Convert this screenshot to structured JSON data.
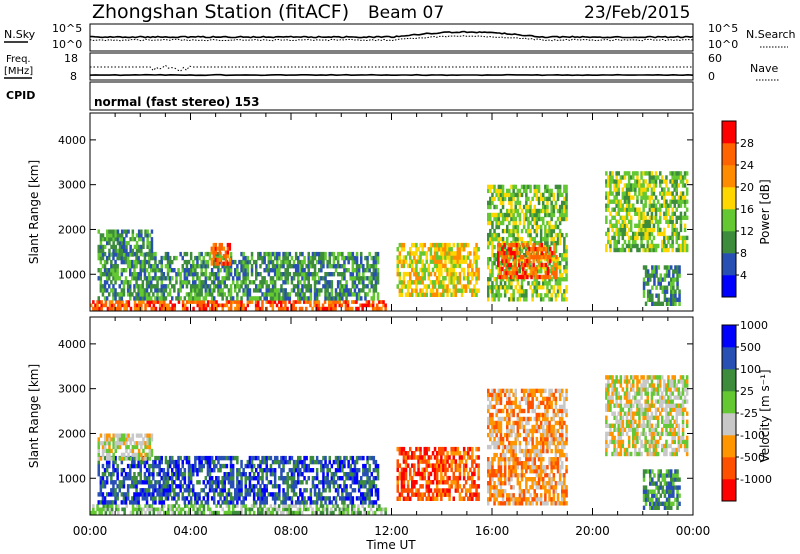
{
  "header": {
    "station_title": "Zhongshan Station (fitACF)",
    "beam": "Beam 07",
    "date": "23/Feb/2015"
  },
  "strip1": {
    "left_label": "N.Sky",
    "right_label": "N.Search",
    "left_ticks": [
      "10^5",
      "10^0"
    ],
    "right_ticks": [
      "10^5",
      "10^0"
    ]
  },
  "strip2": {
    "left_label_1": "Freq.",
    "left_label_2": "[MHz]",
    "right_label": "Nave",
    "left_ticks": [
      "18",
      "8"
    ],
    "right_ticks": [
      "60",
      "0"
    ]
  },
  "strip3": {
    "left_label": "CPID",
    "text": "normal (fast stereo) 153"
  },
  "colors": {
    "power": [
      "#0000ff",
      "#2850b4",
      "#3c8c3c",
      "#64c832",
      "#ffd700",
      "#ff8c00",
      "#ff6400",
      "#ff0000"
    ],
    "velocity": [
      "#ff0000",
      "#ff5000",
      "#ff9600",
      "#c8c8c8",
      "#64c832",
      "#3c8c3c",
      "#2850b4",
      "#0000ff"
    ]
  },
  "chart_data": [
    {
      "type": "heatmap",
      "title": "Power",
      "xlabel": "",
      "ylabel": "Slant Range [km]",
      "xlim": [
        "00:00",
        "00:00"
      ],
      "ylim": [
        180,
        4600
      ],
      "yticks": [
        "1000",
        "2000",
        "3000",
        "4000"
      ],
      "colorbar": {
        "label": "Power [dB]",
        "ticks": [
          "4",
          "8",
          "12",
          "16",
          "20",
          "24",
          "28"
        ],
        "range": [
          0,
          32
        ]
      },
      "blobs": [
        {
          "t0": 0.0,
          "t1": 11.8,
          "r0": 200,
          "r1": 420,
          "level": 6
        },
        {
          "t0": 0.3,
          "t1": 11.5,
          "r0": 420,
          "r1": 1500,
          "level": 2
        },
        {
          "t0": 0.3,
          "t1": 2.5,
          "r0": 1400,
          "r1": 2000,
          "level": 2
        },
        {
          "t0": 4.8,
          "t1": 5.6,
          "r0": 1200,
          "r1": 1700,
          "level": 6
        },
        {
          "t0": 12.2,
          "t1": 15.5,
          "r0": 500,
          "r1": 1700,
          "level": 4
        },
        {
          "t0": 15.8,
          "t1": 19.0,
          "r0": 400,
          "r1": 3000,
          "level": 3
        },
        {
          "t0": 16.2,
          "t1": 18.6,
          "r0": 900,
          "r1": 1700,
          "level": 6
        },
        {
          "t0": 20.5,
          "t1": 23.8,
          "r0": 1500,
          "r1": 3300,
          "level": 3
        },
        {
          "t0": 22.0,
          "t1": 23.5,
          "r0": 300,
          "r1": 1200,
          "level": 2
        }
      ]
    },
    {
      "type": "heatmap",
      "title": "Velocity",
      "xlabel": "Time UT",
      "ylabel": "Slant Range [km]",
      "xlim": [
        "00:00",
        "00:00"
      ],
      "ylim": [
        180,
        4600
      ],
      "xticks": [
        "00:00",
        "04:00",
        "08:00",
        "12:00",
        "16:00",
        "20:00",
        "00:00"
      ],
      "yticks": [
        "1000",
        "2000",
        "3000",
        "4000"
      ],
      "colorbar": {
        "label": "Velocity [m s⁻¹]",
        "ticks": [
          "-1000",
          "-500",
          "-100",
          "-25",
          "25",
          "100",
          "500",
          "1000"
        ],
        "range": [
          -1500,
          1500
        ]
      },
      "blobs": [
        {
          "t0": 0.0,
          "t1": 11.8,
          "r0": 200,
          "r1": 420,
          "level": 4
        },
        {
          "t0": 0.3,
          "t1": 11.5,
          "r0": 420,
          "r1": 1500,
          "level": 6
        },
        {
          "t0": 0.3,
          "t1": 2.5,
          "r0": 1400,
          "r1": 2000,
          "level": 3
        },
        {
          "t0": 12.2,
          "t1": 15.5,
          "r0": 500,
          "r1": 1700,
          "level": 1
        },
        {
          "t0": 15.8,
          "t1": 19.0,
          "r0": 400,
          "r1": 3000,
          "level": 2
        },
        {
          "t0": 20.5,
          "t1": 23.8,
          "r0": 1500,
          "r1": 3300,
          "level": 3
        },
        {
          "t0": 22.0,
          "t1": 23.5,
          "r0": 300,
          "r1": 1200,
          "level": 5
        }
      ]
    }
  ]
}
